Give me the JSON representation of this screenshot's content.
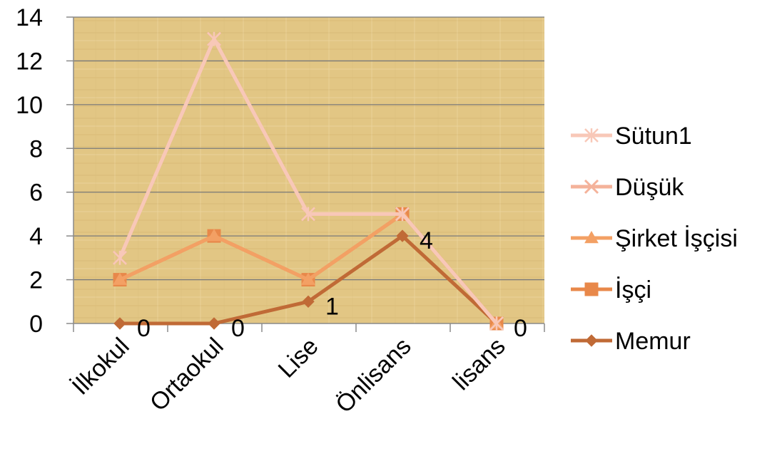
{
  "chart_data": {
    "type": "line",
    "title": "",
    "xlabel": "",
    "ylabel": "",
    "categories": [
      "İlkokul",
      "Ortaokul",
      "Lise",
      "Önlisans",
      "lisans"
    ],
    "ylim": [
      0,
      14
    ],
    "yticks": [
      0,
      2,
      4,
      6,
      8,
      10,
      12,
      14
    ],
    "grid": true,
    "legend": "right",
    "series": [
      {
        "name": "Sütun1",
        "values": [
          3,
          13,
          5,
          5,
          0
        ],
        "marker": "star",
        "color": "#f8c8b8"
      },
      {
        "name": "Düşük",
        "values": [
          3,
          13,
          5,
          5,
          0
        ],
        "marker": "x",
        "color": "#f4b29a"
      },
      {
        "name": "Şirket İşçisi",
        "values": [
          2,
          4,
          2,
          5,
          0
        ],
        "marker": "triangle",
        "color": "#f3a064"
      },
      {
        "name": "İşçi",
        "values": [
          2,
          4,
          2,
          5,
          0
        ],
        "marker": "square",
        "color": "#e8884a"
      },
      {
        "name": "Memur",
        "values": [
          0,
          0,
          1,
          4,
          0
        ],
        "marker": "diamond",
        "color": "#c06a36",
        "labels": [
          "0",
          "0",
          "1",
          "4",
          "0"
        ]
      }
    ]
  }
}
